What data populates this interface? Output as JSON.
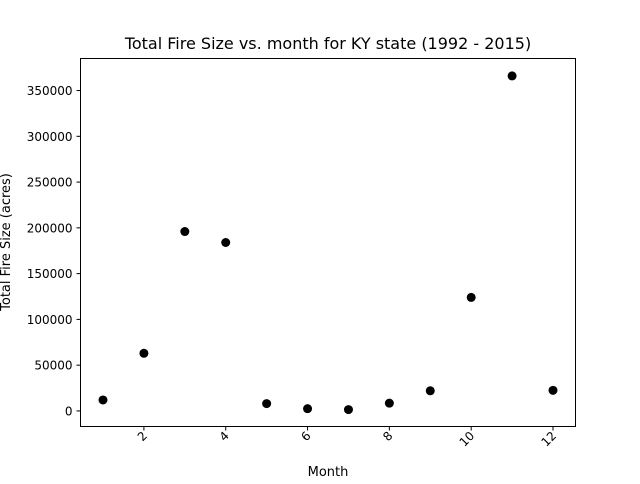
{
  "chart_data": {
    "type": "scatter",
    "title": "Total Fire Size vs. month for KY state (1992 - 2015)",
    "xlabel": "Month",
    "ylabel": "Total Fire Size (acres)",
    "x": [
      1,
      2,
      3,
      4,
      5,
      6,
      7,
      8,
      9,
      10,
      11,
      12
    ],
    "y": [
      12000,
      63000,
      196000,
      184000,
      8000,
      2500,
      1500,
      8500,
      22000,
      124000,
      366000,
      22500
    ],
    "xlim": [
      0.45,
      12.55
    ],
    "ylim": [
      -17000,
      385000
    ],
    "xticks": [
      2,
      4,
      6,
      8,
      10,
      12
    ],
    "xtick_labels": [
      "2",
      "4",
      "6",
      "8",
      "10",
      "12"
    ],
    "xtick_rotation": 45,
    "yticks": [
      0,
      50000,
      100000,
      150000,
      200000,
      250000,
      300000,
      350000
    ],
    "ytick_labels": [
      "0",
      "50000",
      "100000",
      "150000",
      "200000",
      "250000",
      "300000",
      "350000"
    ],
    "grid": false,
    "legend": "none",
    "colors": {
      "marker": "#000000",
      "axes": "#000000",
      "background": "#ffffff"
    }
  }
}
